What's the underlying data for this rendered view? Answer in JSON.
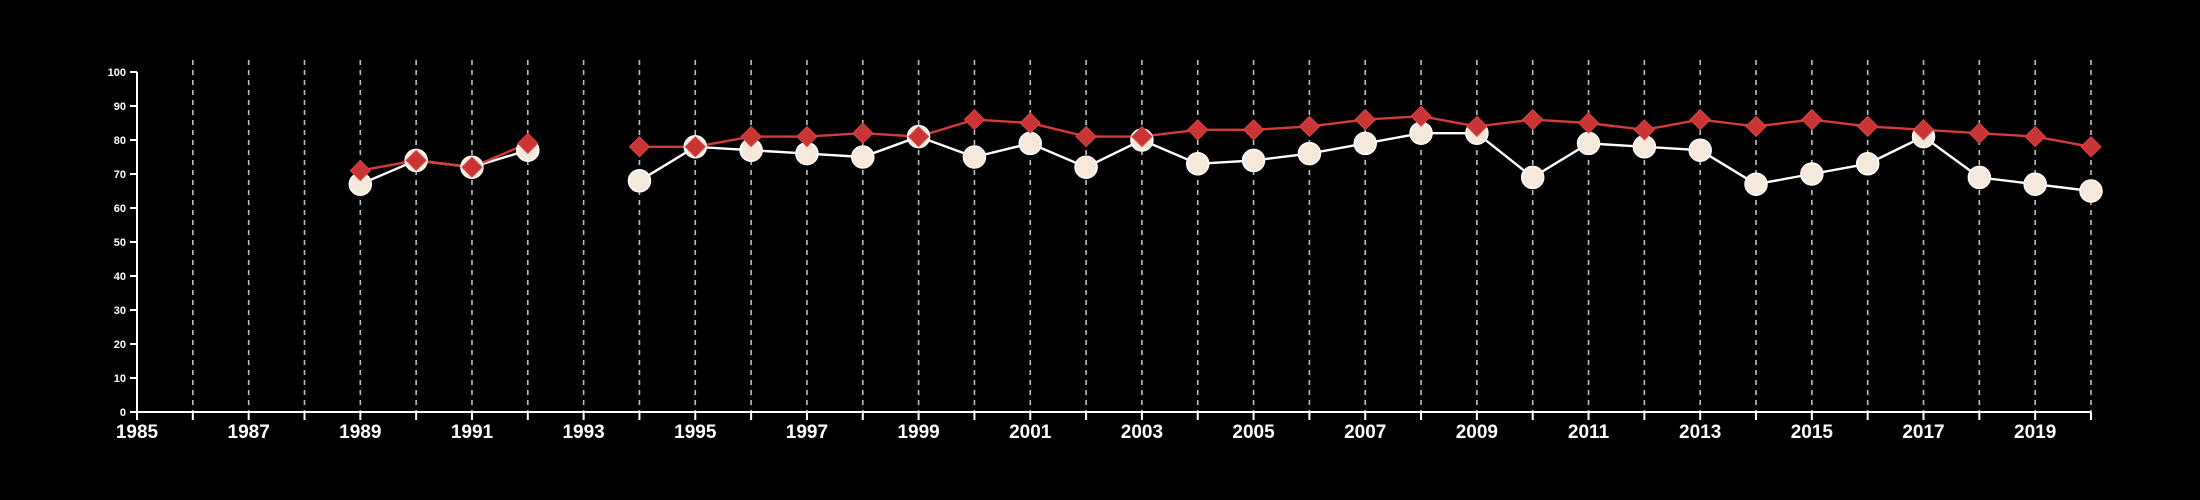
{
  "chart_data": {
    "type": "line",
    "title": "",
    "xlabel": "",
    "ylabel": "",
    "xlim": [
      1985,
      2020
    ],
    "ylim": [
      0,
      100
    ],
    "x_ticks": [
      1985,
      1987,
      1989,
      1991,
      1993,
      1995,
      1997,
      1999,
      2001,
      2003,
      2005,
      2007,
      2009,
      2011,
      2013,
      2015,
      2017,
      2019
    ],
    "y_ticks": [
      0,
      10,
      20,
      30,
      40,
      50,
      60,
      70,
      80,
      90,
      100
    ],
    "grid": "vertical dashed at every year",
    "legend": "none",
    "background_color": "#000000",
    "series": [
      {
        "marker": "circle",
        "line_color": "#ffffff",
        "marker_color": "#f6e8da",
        "points": [
          [
            1989,
            67
          ],
          [
            1990,
            74
          ],
          [
            1991,
            72
          ],
          [
            1992,
            77
          ],
          [
            1993,
            null
          ],
          [
            1994,
            68
          ],
          [
            1995,
            78
          ],
          [
            1996,
            77
          ],
          [
            1997,
            76
          ],
          [
            1998,
            75
          ],
          [
            1999,
            81
          ],
          [
            2000,
            75
          ],
          [
            2001,
            79
          ],
          [
            2002,
            72
          ],
          [
            2003,
            80
          ],
          [
            2004,
            73
          ],
          [
            2005,
            74
          ],
          [
            2006,
            76
          ],
          [
            2007,
            79
          ],
          [
            2008,
            82
          ],
          [
            2009,
            82
          ],
          [
            2010,
            69
          ],
          [
            2011,
            79
          ],
          [
            2012,
            78
          ],
          [
            2013,
            77
          ],
          [
            2014,
            67
          ],
          [
            2015,
            70
          ],
          [
            2016,
            73
          ],
          [
            2017,
            81
          ],
          [
            2018,
            69
          ],
          [
            2019,
            67
          ],
          [
            2020,
            65
          ]
        ]
      },
      {
        "marker": "diamond",
        "line_color": "#d63b3b",
        "marker_color": "#c93434",
        "points": [
          [
            1989,
            71
          ],
          [
            1990,
            74
          ],
          [
            1991,
            72
          ],
          [
            1992,
            79
          ],
          [
            1993,
            null
          ],
          [
            1994,
            78
          ],
          [
            1995,
            78
          ],
          [
            1996,
            81
          ],
          [
            1997,
            81
          ],
          [
            1998,
            82
          ],
          [
            1999,
            81
          ],
          [
            2000,
            86
          ],
          [
            2001,
            85
          ],
          [
            2002,
            81
          ],
          [
            2003,
            81
          ],
          [
            2004,
            83
          ],
          [
            2005,
            83
          ],
          [
            2006,
            84
          ],
          [
            2007,
            86
          ],
          [
            2008,
            87
          ],
          [
            2009,
            84
          ],
          [
            2010,
            86
          ],
          [
            2011,
            85
          ],
          [
            2012,
            83
          ],
          [
            2013,
            86
          ],
          [
            2014,
            84
          ],
          [
            2015,
            86
          ],
          [
            2016,
            84
          ],
          [
            2017,
            83
          ],
          [
            2018,
            82
          ],
          [
            2019,
            81
          ],
          [
            2020,
            78
          ]
        ]
      }
    ]
  }
}
